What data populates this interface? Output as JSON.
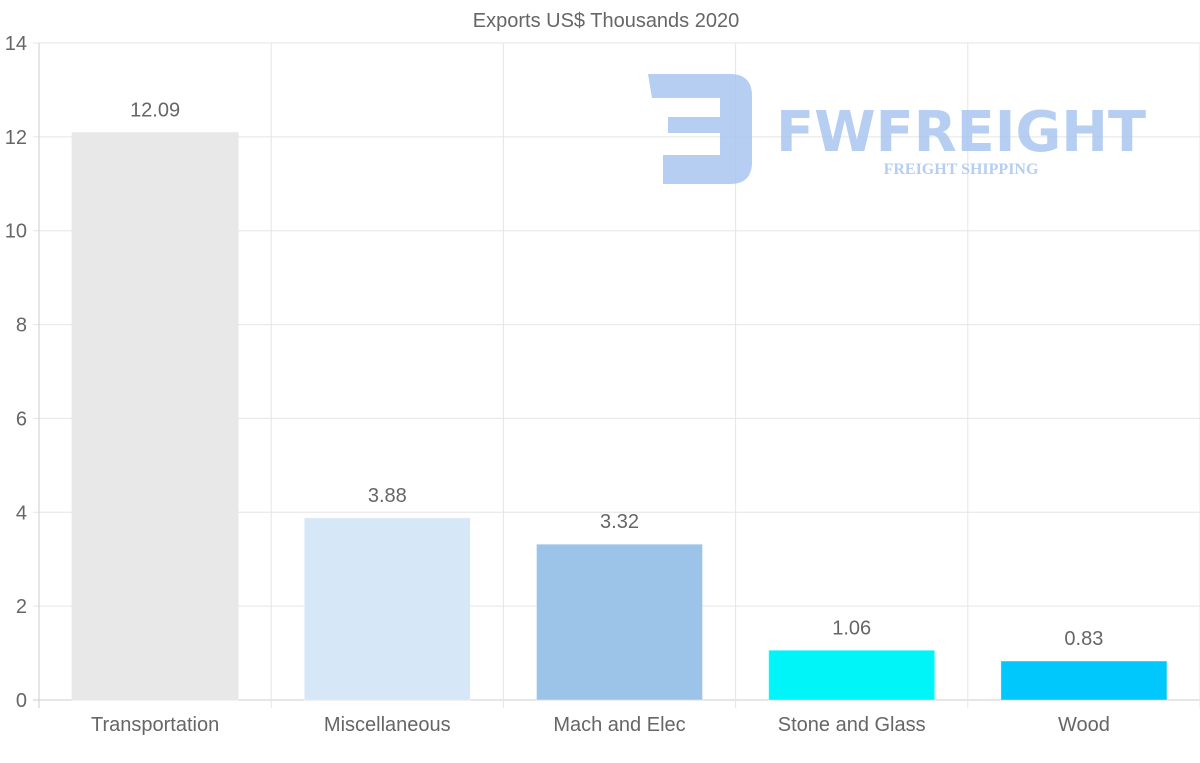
{
  "chart_data": {
    "type": "bar",
    "title": "Exports US$ Thousands 2020",
    "xlabel": "",
    "ylabel": "",
    "categories": [
      "Transportation",
      "Miscellaneous",
      "Mach and Elec",
      "Stone and Glass",
      "Wood"
    ],
    "values": [
      12.09,
      3.88,
      3.32,
      1.06,
      0.83
    ],
    "data_labels": [
      "12.09",
      "3.88",
      "3.32",
      "1.06",
      "0.83"
    ],
    "colors": [
      "#e8e8e8",
      "#d6e7f8",
      "#9cc4e8",
      "#00f5f8",
      "#00c8fc"
    ],
    "ylim": [
      0,
      14
    ],
    "yticks": [
      0,
      2,
      4,
      6,
      8,
      10,
      12,
      14
    ],
    "grid": true,
    "legend": "none"
  },
  "watermark": {
    "brand": "FWFREIGHT",
    "tagline": "FREIGHT SHIPPING",
    "color": "#a9c6f0"
  }
}
